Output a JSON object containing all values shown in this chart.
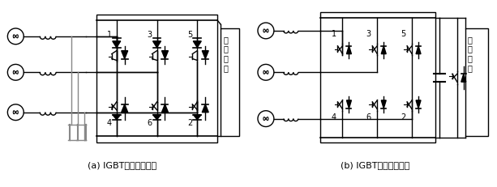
{
  "title_a": "(a) IGBT电流型变流器",
  "title_b": "(b) IGBT电压型变流器",
  "coil_label": "超\n导\n线\n圈",
  "bg_color": "#ffffff",
  "line_color": "#000000",
  "gray_color": "#888888",
  "fig_width": 6.13,
  "fig_height": 2.32,
  "dpi": 100
}
